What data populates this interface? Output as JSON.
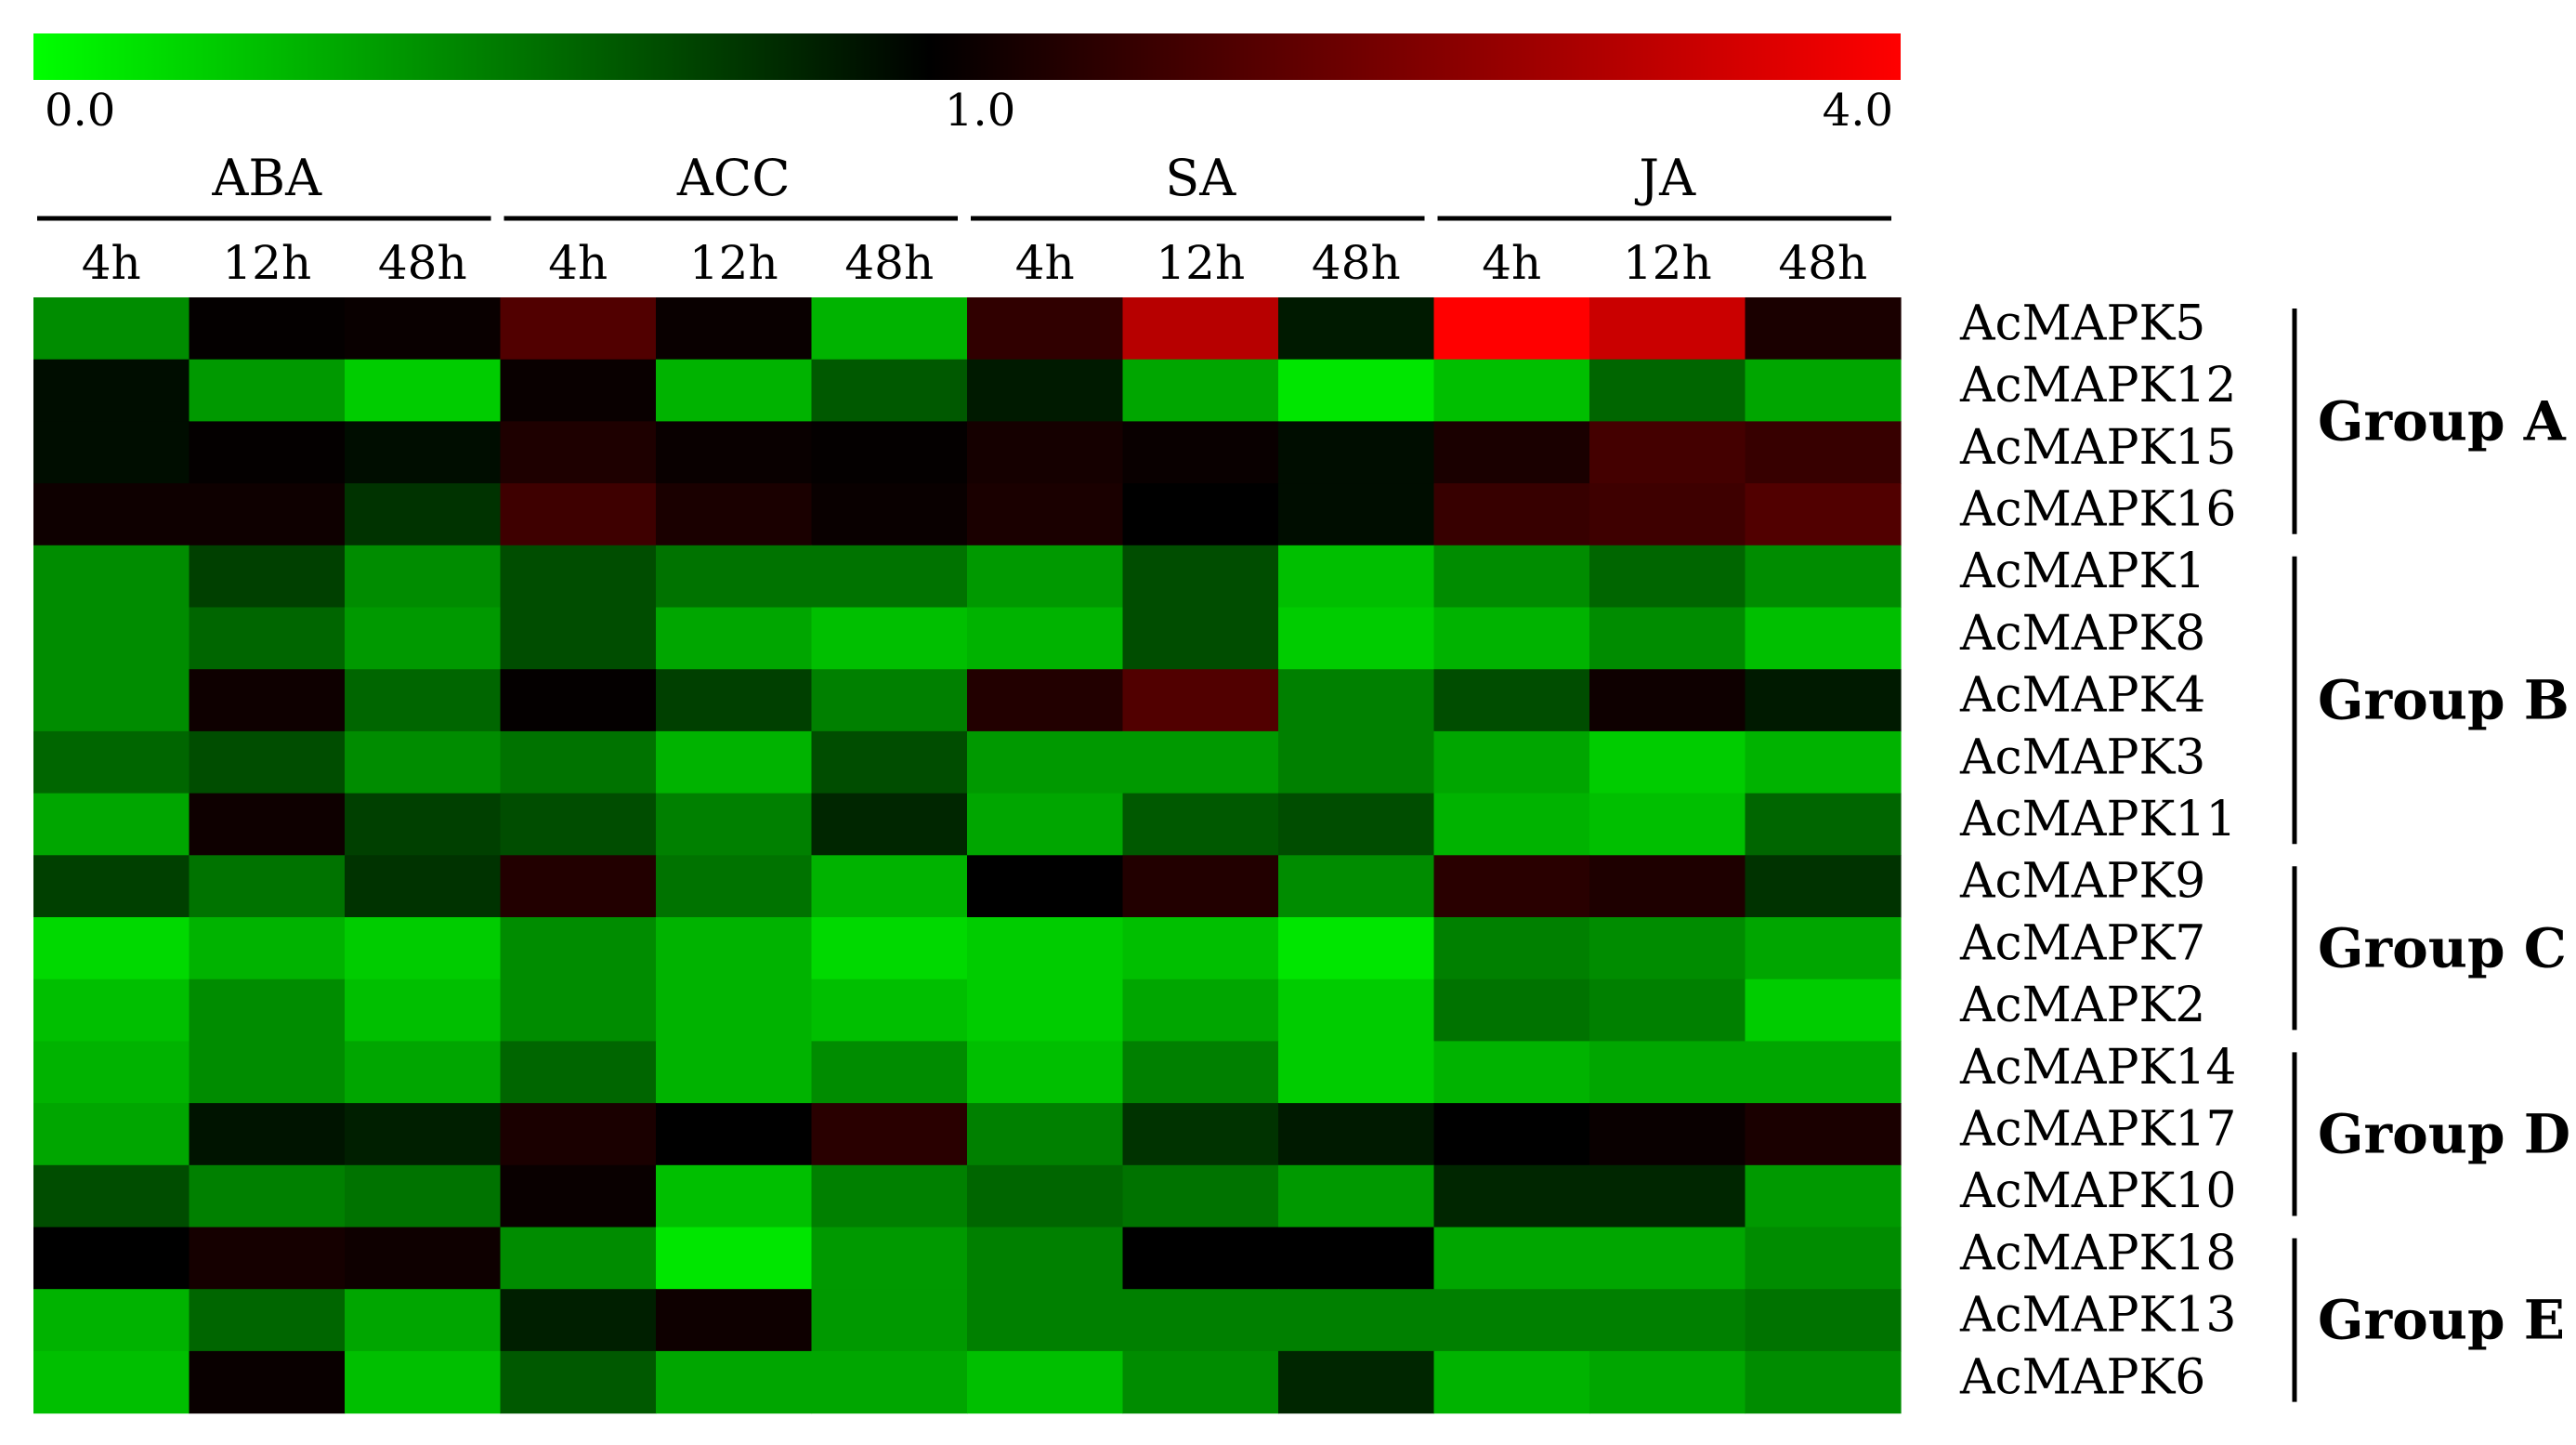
{
  "chart_data": {
    "type": "heatmap",
    "title": "",
    "colorbar": {
      "ticks": [
        "0.0",
        "1.0",
        "4.0"
      ],
      "tick_values": [
        0,
        1,
        4
      ],
      "low_color": "#00ff00",
      "mid_color": "#000000",
      "high_color": "#ff0000"
    },
    "conditions": [
      {
        "name": "ABA",
        "times": [
          "4h",
          "12h",
          "48h"
        ]
      },
      {
        "name": "ACC",
        "times": [
          "4h",
          "12h",
          "48h"
        ]
      },
      {
        "name": "SA",
        "times": [
          "4h",
          "12h",
          "48h"
        ]
      },
      {
        "name": "JA",
        "times": [
          "4h",
          "12h",
          "48h"
        ]
      }
    ],
    "genes": [
      "AcMAPK5",
      "AcMAPK12",
      "AcMAPK15",
      "AcMAPK16",
      "AcMAPK1",
      "AcMAPK8",
      "AcMAPK4",
      "AcMAPK3",
      "AcMAPK11",
      "AcMAPK9",
      "AcMAPK7",
      "AcMAPK2",
      "AcMAPK14",
      "AcMAPK17",
      "AcMAPK10",
      "AcMAPK18",
      "AcMAPK13",
      "AcMAPK6"
    ],
    "groups": [
      {
        "label": "Group A",
        "start": 0,
        "end": 3
      },
      {
        "label": "Group B",
        "start": 4,
        "end": 8
      },
      {
        "label": "Group C",
        "start": 9,
        "end": 11
      },
      {
        "label": "Group D",
        "start": 12,
        "end": 14
      },
      {
        "label": "Group E",
        "start": 15,
        "end": 17
      }
    ],
    "values": [
      [
        0.45,
        1.02,
        1.05,
        1.55,
        1.05,
        0.3,
        1.3,
        2.7,
        0.9,
        4.0,
        3.0,
        1.15
      ],
      [
        0.95,
        0.4,
        0.2,
        1.05,
        0.3,
        0.65,
        0.9,
        0.35,
        0.1,
        0.25,
        0.6,
        0.35
      ],
      [
        0.95,
        1.02,
        0.95,
        1.18,
        1.05,
        1.02,
        1.12,
        1.05,
        0.95,
        1.15,
        1.45,
        1.35
      ],
      [
        1.08,
        1.08,
        0.8,
        1.4,
        1.15,
        1.05,
        1.15,
        1.0,
        0.95,
        1.35,
        1.4,
        1.55
      ],
      [
        0.45,
        0.75,
        0.45,
        0.7,
        0.55,
        0.55,
        0.4,
        0.7,
        0.25,
        0.45,
        0.6,
        0.45
      ],
      [
        0.45,
        0.6,
        0.4,
        0.7,
        0.35,
        0.25,
        0.3,
        0.7,
        0.2,
        0.3,
        0.45,
        0.25
      ],
      [
        0.45,
        1.08,
        0.6,
        1.02,
        0.75,
        0.5,
        1.2,
        1.55,
        0.5,
        0.7,
        1.08,
        0.9
      ],
      [
        0.6,
        0.7,
        0.45,
        0.55,
        0.3,
        0.7,
        0.4,
        0.4,
        0.5,
        0.35,
        0.2,
        0.3
      ],
      [
        0.35,
        1.08,
        0.75,
        0.7,
        0.5,
        0.85,
        0.35,
        0.65,
        0.7,
        0.3,
        0.25,
        0.6
      ],
      [
        0.75,
        0.55,
        0.8,
        1.2,
        0.55,
        0.3,
        1.0,
        1.2,
        0.45,
        1.25,
        1.18,
        0.8
      ],
      [
        0.15,
        0.3,
        0.2,
        0.45,
        0.3,
        0.15,
        0.2,
        0.25,
        0.1,
        0.5,
        0.45,
        0.35
      ],
      [
        0.25,
        0.45,
        0.25,
        0.45,
        0.3,
        0.25,
        0.2,
        0.35,
        0.2,
        0.55,
        0.5,
        0.2
      ],
      [
        0.3,
        0.45,
        0.35,
        0.6,
        0.3,
        0.45,
        0.25,
        0.5,
        0.2,
        0.3,
        0.35,
        0.35
      ],
      [
        0.35,
        0.92,
        0.88,
        1.15,
        1.0,
        1.25,
        0.5,
        0.8,
        0.9,
        1.0,
        1.05,
        1.15
      ],
      [
        0.7,
        0.5,
        0.55,
        1.05,
        0.25,
        0.5,
        0.6,
        0.55,
        0.4,
        0.85,
        0.85,
        0.4
      ],
      [
        1.0,
        1.12,
        1.08,
        0.45,
        0.1,
        0.4,
        0.5,
        1.0,
        1.0,
        0.35,
        0.35,
        0.45
      ],
      [
        0.3,
        0.6,
        0.35,
        0.88,
        1.08,
        0.4,
        0.5,
        0.5,
        0.5,
        0.5,
        0.5,
        0.55
      ],
      [
        0.25,
        1.05,
        0.25,
        0.65,
        0.35,
        0.35,
        0.25,
        0.45,
        0.85,
        0.3,
        0.35,
        0.45
      ]
    ]
  }
}
